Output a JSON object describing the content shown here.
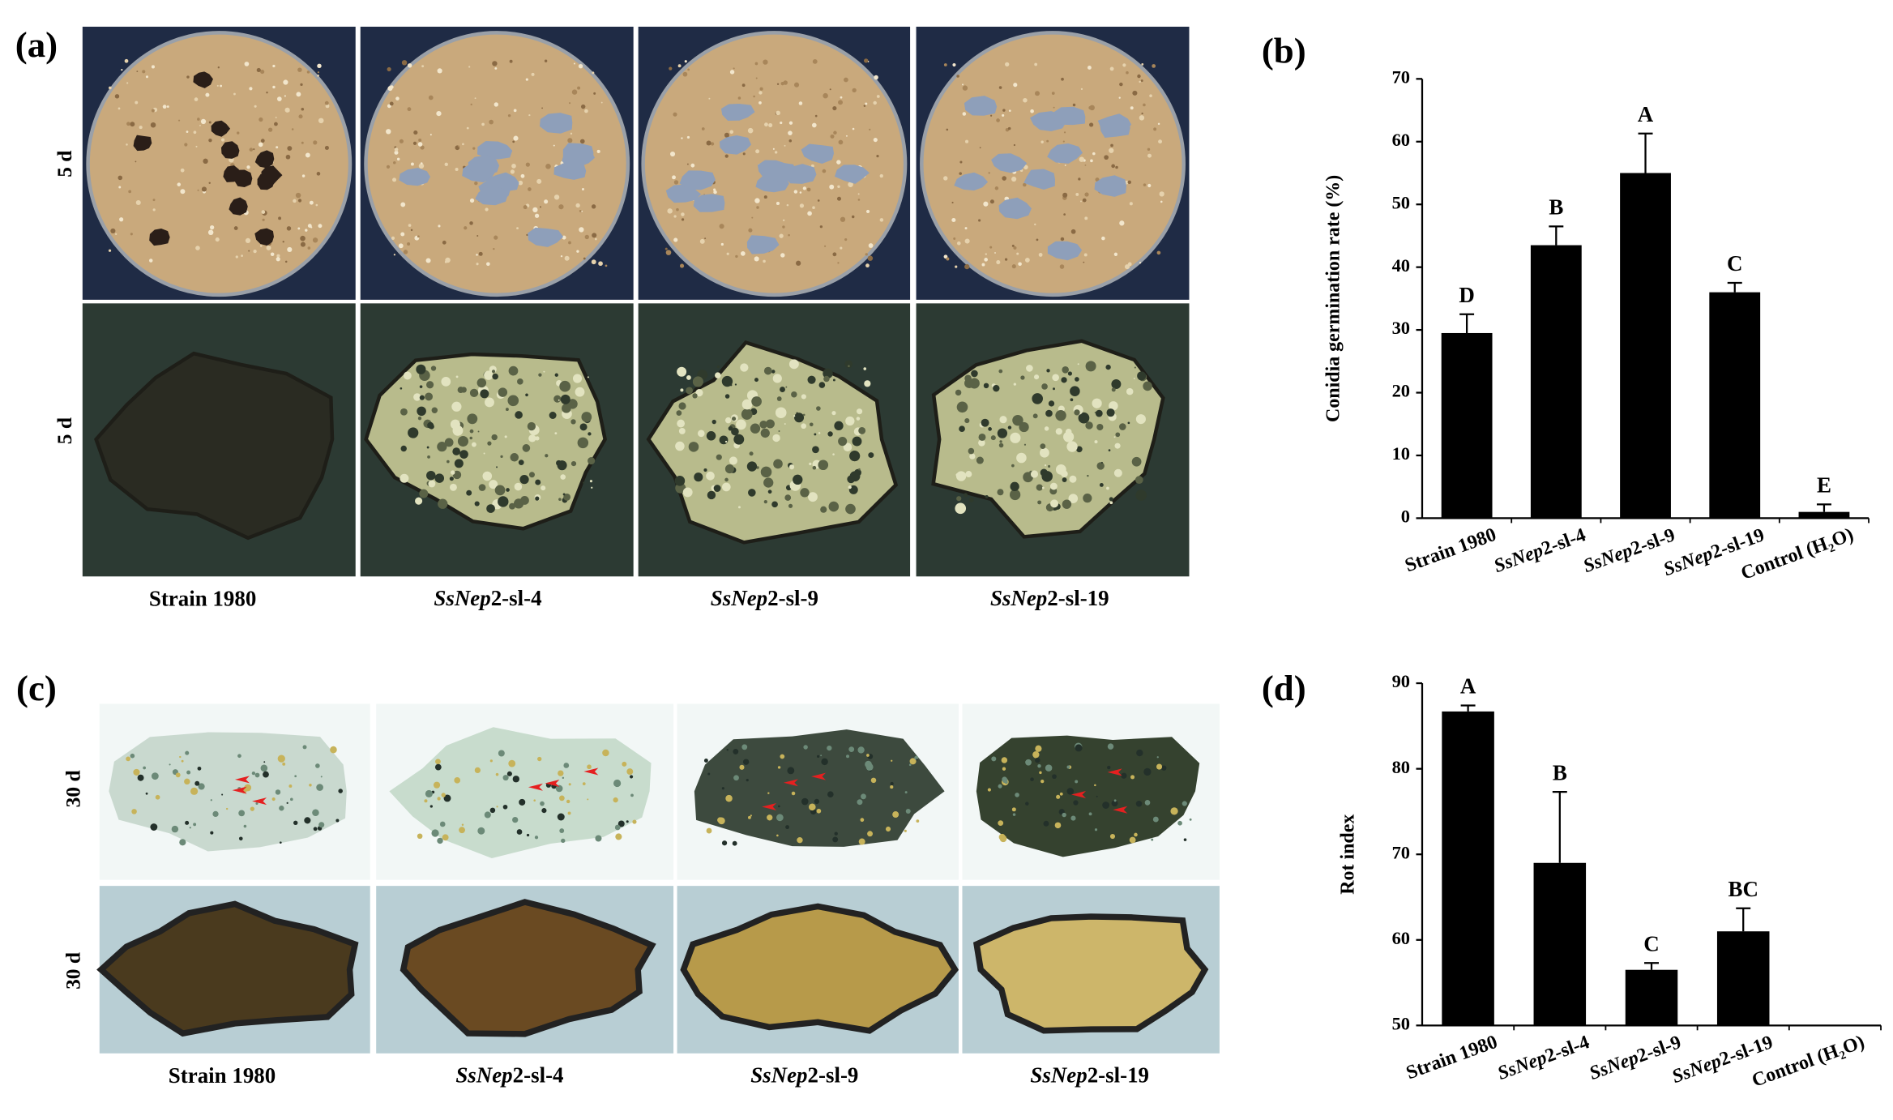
{
  "figure": {
    "panel_labels": [
      "(a)",
      "(b)",
      "(c)",
      "(d)"
    ],
    "row_labels_a": [
      "5 d",
      "5 d"
    ],
    "captions_a": [
      "Strain 1980",
      "SsNep2-sl-4",
      "SsNep2-sl-9",
      "SsNep2-sl-19"
    ],
    "row_labels_c": [
      "30 d",
      "30 d"
    ],
    "captions_c": [
      "Strain 1980",
      "SsNep2-sl-4",
      "SsNep2-sl-9",
      "SsNep2-sl-19"
    ]
  },
  "chart_data": [
    {
      "type": "bar",
      "ylabel": "Conidia germination rate (%)",
      "categories": [
        "Strain 1980",
        "SsNep2-sl-4",
        "SsNep2-sl-9",
        "SsNep2-sl-19",
        "Control (H₂O)"
      ],
      "values": [
        29.5,
        43.5,
        55,
        36,
        1
      ],
      "errors": [
        3,
        3,
        6.3,
        1.5,
        1.2
      ],
      "annotations": [
        "D",
        "B",
        "A",
        "C",
        "E"
      ],
      "color": "#000000",
      "ylim": [
        0,
        70
      ],
      "yticks": [
        0,
        10,
        20,
        30,
        40,
        50,
        60,
        70
      ]
    },
    {
      "type": "bar",
      "ylabel": "Rot index",
      "categories": [
        "Strain 1980",
        "SsNep2-sl-4",
        "SsNep2-sl-9",
        "SsNep2-sl-19",
        "Control (H₂O)"
      ],
      "values": [
        86.7,
        69,
        56.5,
        61,
        null
      ],
      "errors": [
        0.7,
        8.3,
        0.8,
        2.7,
        null
      ],
      "annotations": [
        "A",
        "B",
        "C",
        "BC",
        null
      ],
      "color": "#000000",
      "ylim": [
        50,
        90
      ],
      "yticks": [
        50,
        60,
        70,
        80,
        90
      ]
    }
  ]
}
